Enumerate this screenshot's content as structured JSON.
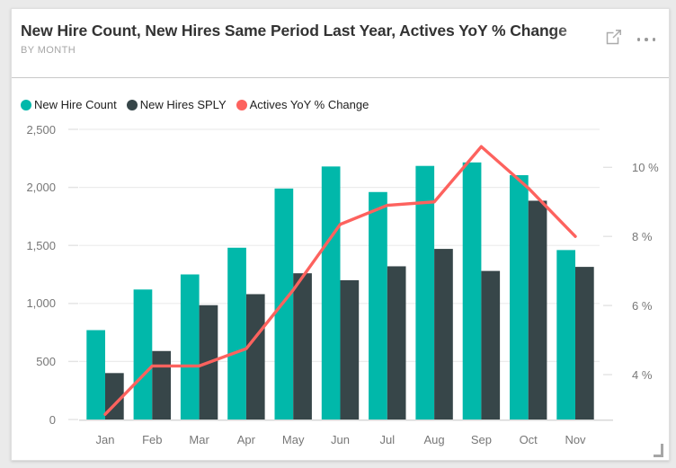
{
  "header": {
    "title": "New Hire Count, New Hires Same Period Last Year, Actives YoY % Change",
    "subtitle": "BY MONTH"
  },
  "icons": {
    "focus_mode": "focus-mode-icon",
    "more_options": "more-options-icon",
    "resize_grip": "resize-grip-icon"
  },
  "legend": {
    "items": [
      {
        "label": "New Hire Count",
        "color": "#01B8AA"
      },
      {
        "label": "New Hires SPLY",
        "color": "#374649"
      },
      {
        "label": "Actives YoY % Change",
        "color": "#FD625E"
      }
    ]
  },
  "colors": {
    "page_bg": "#EAEAEA",
    "card_bg": "#FFFFFF",
    "card_border": "#E0E0E0",
    "divider": "#C8C8C8",
    "title_text": "#333333",
    "subtitle_text": "#A6A6A6",
    "legend_text": "#212121",
    "axis_text": "#777777",
    "icon_gray": "#A6A6A6",
    "gridline": "#ECECEC",
    "axis_line": "#D8D8D8",
    "tick": "#E3E3E3",
    "teal": "#01B8AA",
    "dark_slate": "#374649",
    "coral": "#FD625E"
  },
  "chart_data": {
    "type": "combo",
    "title": "New Hire Count, New Hires Same Period Last Year, Actives YoY % Change",
    "subtitle": "BY MONTH",
    "categories": [
      "Jan",
      "Feb",
      "Mar",
      "Apr",
      "May",
      "Jun",
      "Jul",
      "Aug",
      "Sep",
      "Oct",
      "Nov"
    ],
    "series": [
      {
        "name": "New Hire Count",
        "type": "bar",
        "axis": "left",
        "color": "#01B8AA",
        "values": [
          770,
          1120,
          1250,
          1480,
          1990,
          2180,
          1960,
          2185,
          2215,
          2105,
          1460
        ]
      },
      {
        "name": "New Hires SPLY",
        "type": "bar",
        "axis": "left",
        "color": "#374649",
        "values": [
          400,
          590,
          985,
          1080,
          1260,
          1200,
          1320,
          1470,
          1280,
          1885,
          1315
        ]
      },
      {
        "name": "Actives YoY % Change",
        "type": "line",
        "axis": "right",
        "color": "#FD625E",
        "values": [
          2.85,
          4.25,
          4.25,
          4.75,
          6.45,
          8.35,
          8.9,
          9.0,
          10.6,
          9.4,
          8.0
        ]
      }
    ],
    "left_axis": {
      "min": 0,
      "max": 2500,
      "tick_values": [
        0,
        500,
        1000,
        1500,
        2000,
        2500
      ],
      "tick_labels": [
        "0",
        "500",
        "1,000",
        "1,500",
        "2,000",
        "2,500"
      ]
    },
    "right_axis": {
      "min": 2.7,
      "max": 11.1,
      "tick_values": [
        4,
        6,
        8,
        10
      ],
      "tick_labels": [
        "4 %",
        "6 %",
        "8 %",
        "10 %"
      ]
    },
    "grid": true,
    "legend_position": "top"
  }
}
